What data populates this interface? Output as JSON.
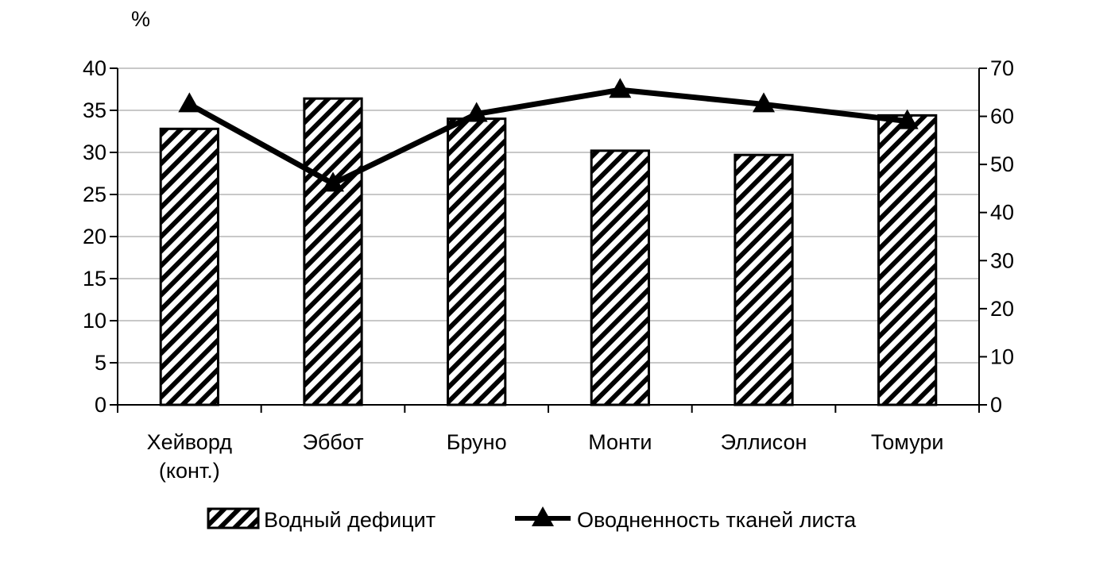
{
  "chart_data": {
    "type": "bar",
    "unit_label": "%",
    "categories": [
      "Хейворд (конт.)",
      "Эббот",
      "Бруно",
      "Монти",
      "Эллисон",
      "Томури"
    ],
    "series": [
      {
        "name": "Водный дефицит",
        "type": "bar",
        "axis": "left",
        "pattern": "diagonal-hatch",
        "values": [
          32.8,
          36.4,
          34.0,
          30.2,
          29.7,
          34.4
        ]
      },
      {
        "name": "Оводненность тканей листа",
        "type": "line",
        "axis": "right",
        "marker": "triangle",
        "values": [
          62.5,
          46.0,
          60.5,
          65.5,
          62.5,
          59.0
        ]
      }
    ],
    "y_left": {
      "min": 0,
      "max": 40,
      "step": 5,
      "ticks": [
        "0",
        "5",
        "10",
        "15",
        "20",
        "25",
        "30",
        "35",
        "40"
      ]
    },
    "y_right": {
      "min": 0,
      "max": 70,
      "step": 10,
      "ticks": [
        "0",
        "10",
        "20",
        "30",
        "40",
        "50",
        "60",
        "70"
      ]
    },
    "grid": true,
    "legend_position": "bottom",
    "colors": {
      "ink": "#000000",
      "grid": "#c8c8c8",
      "background": "#ffffff"
    }
  }
}
